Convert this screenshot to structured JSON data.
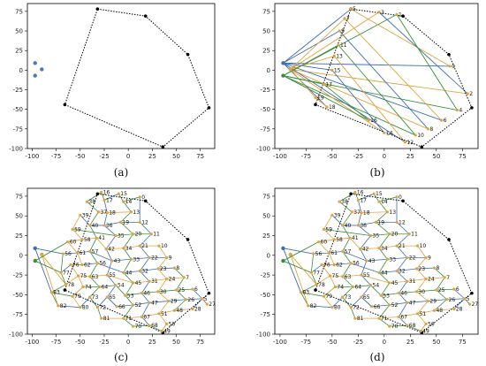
{
  "figure": {
    "panels": [
      {
        "id": "a",
        "label": "(a)"
      },
      {
        "id": "b",
        "label": "(b)"
      },
      {
        "id": "c",
        "label": "(c)"
      },
      {
        "id": "d",
        "label": "(d)"
      }
    ],
    "colors": {
      "blue": "#3f6fb2",
      "orange": "#e0a43c",
      "green": "#3a8f3a",
      "dots": "#4a7ab8",
      "hull": "#000000"
    }
  },
  "chart_data": [
    {
      "type": "scatter",
      "panel": "(a)",
      "title": "",
      "xlabel": "",
      "ylabel": "",
      "xlim": [
        -105,
        90
      ],
      "ylim": [
        -100,
        85
      ],
      "x_ticks": [
        -100,
        -75,
        -50,
        -25,
        0,
        25,
        50,
        75
      ],
      "y_ticks": [
        -100,
        -75,
        -50,
        -25,
        0,
        25,
        50,
        75
      ],
      "hull": [
        [
          -32,
          78
        ],
        [
          18,
          69
        ],
        [
          62,
          20
        ],
        [
          84,
          -48
        ],
        [
          36,
          -98
        ],
        [
          -66,
          -44
        ]
      ],
      "points": [
        [
          -97,
          9
        ],
        [
          -90,
          1
        ],
        [
          -97,
          -7
        ]
      ]
    },
    {
      "type": "line",
      "panel": "(b)",
      "title": "",
      "xlabel": "",
      "ylabel": "",
      "xlim": [
        -105,
        90
      ],
      "ylim": [
        -100,
        85
      ],
      "x_ticks": [
        -100,
        -75,
        -50,
        -25,
        0,
        25,
        50,
        75
      ],
      "y_ticks": [
        -100,
        -75,
        -50,
        -25,
        0,
        25,
        50,
        75
      ],
      "hull": [
        [
          -32,
          78
        ],
        [
          18,
          69
        ],
        [
          62,
          20
        ],
        [
          84,
          -48
        ],
        [
          36,
          -98
        ],
        [
          -66,
          -44
        ]
      ],
      "labeled_points": [
        {
          "label": "5",
          "x": -32,
          "y": 78
        },
        {
          "label": "3",
          "x": -5,
          "y": 74
        },
        {
          "label": "1",
          "x": 12,
          "y": 71
        },
        {
          "label": "0",
          "x": 63,
          "y": 5
        },
        {
          "label": "2",
          "x": 80,
          "y": -30
        },
        {
          "label": "4",
          "x": 70,
          "y": -51
        },
        {
          "label": "6",
          "x": 55,
          "y": -64
        },
        {
          "label": "8",
          "x": 42,
          "y": -75
        },
        {
          "label": "10",
          "x": 30,
          "y": -83
        },
        {
          "label": "12",
          "x": 20,
          "y": -92
        },
        {
          "label": "14",
          "x": 0,
          "y": -80
        },
        {
          "label": "16",
          "x": -15,
          "y": -64
        },
        {
          "label": "18",
          "x": -55,
          "y": -47
        },
        {
          "label": "19",
          "x": -66,
          "y": -35
        },
        {
          "label": "17",
          "x": -58,
          "y": -18
        },
        {
          "label": "15",
          "x": -50,
          "y": 0
        },
        {
          "label": "13",
          "x": -48,
          "y": 18
        },
        {
          "label": "11",
          "x": -44,
          "y": 32
        },
        {
          "label": "9",
          "x": -43,
          "y": 50
        },
        {
          "label": "7",
          "x": -38,
          "y": 66
        }
      ]
    },
    {
      "type": "line",
      "panel": "(c)",
      "title": "",
      "xlabel": "",
      "ylabel": "",
      "xlim": [
        -105,
        90
      ],
      "ylim": [
        -100,
        85
      ],
      "x_ticks": [
        -100,
        -75,
        -50,
        -25,
        0,
        25,
        50,
        75
      ],
      "y_ticks": [
        -100,
        -75,
        -50,
        -25,
        0,
        25,
        50,
        75
      ],
      "hull": [
        [
          -32,
          78
        ],
        [
          18,
          69
        ],
        [
          62,
          20
        ],
        [
          84,
          -48
        ],
        [
          36,
          -98
        ],
        [
          -66,
          -44
        ]
      ],
      "labeled_points": [
        {
          "label": "16",
          "x": -28,
          "y": 80
        },
        {
          "label": "15",
          "x": -10,
          "y": 78
        },
        {
          "label": "0",
          "x": 12,
          "y": 74
        },
        {
          "label": "38",
          "x": -43,
          "y": 68
        },
        {
          "label": "17",
          "x": -25,
          "y": 70
        },
        {
          "label": "14",
          "x": -5,
          "y": 68
        },
        {
          "label": "39",
          "x": -50,
          "y": 51
        },
        {
          "label": "37",
          "x": -31,
          "y": 55
        },
        {
          "label": "18",
          "x": -22,
          "y": 54
        },
        {
          "label": "13",
          "x": 3,
          "y": 55
        },
        {
          "label": "59",
          "x": -58,
          "y": 33
        },
        {
          "label": "40",
          "x": -40,
          "y": 38
        },
        {
          "label": "36",
          "x": -25,
          "y": 38
        },
        {
          "label": "19",
          "x": -8,
          "y": 42
        },
        {
          "label": "12",
          "x": 12,
          "y": 42
        },
        {
          "label": "60",
          "x": -63,
          "y": 17
        },
        {
          "label": "58",
          "x": -48,
          "y": 20
        },
        {
          "label": "41",
          "x": -33,
          "y": 22
        },
        {
          "label": "35",
          "x": -13,
          "y": 25
        },
        {
          "label": "20",
          "x": 5,
          "y": 27
        },
        {
          "label": "11",
          "x": 24,
          "y": 27
        },
        {
          "label": "56",
          "x": -68,
          "y": 2
        },
        {
          "label": "61",
          "x": -53,
          "y": 3
        },
        {
          "label": "57",
          "x": -40,
          "y": 5
        },
        {
          "label": "42",
          "x": -23,
          "y": 8
        },
        {
          "label": "34",
          "x": -5,
          "y": 9
        },
        {
          "label": "21",
          "x": 12,
          "y": 12
        },
        {
          "label": "10",
          "x": 32,
          "y": 12
        },
        {
          "label": "76",
          "x": -60,
          "y": -12
        },
        {
          "label": "62",
          "x": -48,
          "y": -12
        },
        {
          "label": "56",
          "x": -32,
          "y": -10
        },
        {
          "label": "43",
          "x": -17,
          "y": -7
        },
        {
          "label": "33",
          "x": 3,
          "y": -5
        },
        {
          "label": "22",
          "x": 22,
          "y": -3
        },
        {
          "label": "9",
          "x": 40,
          "y": -3
        },
        {
          "label": "77",
          "x": -70,
          "y": -22
        },
        {
          "label": "75",
          "x": -52,
          "y": -26
        },
        {
          "label": "63",
          "x": -40,
          "y": -27
        },
        {
          "label": "55",
          "x": -22,
          "y": -25
        },
        {
          "label": "44",
          "x": -5,
          "y": -22
        },
        {
          "label": "32",
          "x": 12,
          "y": -20
        },
        {
          "label": "23",
          "x": 31,
          "y": -17
        },
        {
          "label": "8",
          "x": 48,
          "y": -16
        },
        {
          "label": "78",
          "x": -65,
          "y": -37
        },
        {
          "label": "74",
          "x": -47,
          "y": -40
        },
        {
          "label": "64",
          "x": -30,
          "y": -40
        },
        {
          "label": "54",
          "x": -13,
          "y": -38
        },
        {
          "label": "45",
          "x": 5,
          "y": -35
        },
        {
          "label": "31",
          "x": 22,
          "y": -33
        },
        {
          "label": "24",
          "x": 40,
          "y": -30
        },
        {
          "label": "7",
          "x": 58,
          "y": -28
        },
        {
          "label": "83",
          "x": -80,
          "y": -47
        },
        {
          "label": "79",
          "x": -58,
          "y": -52
        },
        {
          "label": "73",
          "x": -40,
          "y": -53
        },
        {
          "label": "65",
          "x": -22,
          "y": -53
        },
        {
          "label": "53",
          "x": -3,
          "y": -51
        },
        {
          "label": "46",
          "x": 14,
          "y": -48
        },
        {
          "label": "30",
          "x": 31,
          "y": -46
        },
        {
          "label": "25",
          "x": 50,
          "y": -44
        },
        {
          "label": "6",
          "x": 67,
          "y": -43
        },
        {
          "label": "82",
          "x": -73,
          "y": -64
        },
        {
          "label": "80",
          "x": -50,
          "y": -66
        },
        {
          "label": "72",
          "x": -32,
          "y": -66
        },
        {
          "label": "66",
          "x": -12,
          "y": -65
        },
        {
          "label": "52",
          "x": 5,
          "y": -63
        },
        {
          "label": "47",
          "x": 22,
          "y": -60
        },
        {
          "label": "29",
          "x": 42,
          "y": -58
        },
        {
          "label": "26",
          "x": 60,
          "y": -56
        },
        {
          "label": "5",
          "x": 77,
          "y": -55
        },
        {
          "label": "81",
          "x": -28,
          "y": -80
        },
        {
          "label": "71",
          "x": -5,
          "y": -80
        },
        {
          "label": "67",
          "x": 14,
          "y": -78
        },
        {
          "label": "51",
          "x": 32,
          "y": -74
        },
        {
          "label": "48",
          "x": 48,
          "y": -70
        },
        {
          "label": "28",
          "x": 67,
          "y": -68
        },
        {
          "label": "27",
          "x": 82,
          "y": -62
        },
        {
          "label": "70",
          "x": 5,
          "y": -90
        },
        {
          "label": "68",
          "x": 22,
          "y": -89
        },
        {
          "label": "50",
          "x": 40,
          "y": -87
        },
        {
          "label": "49",
          "x": 35,
          "y": -96
        }
      ]
    },
    {
      "type": "line",
      "panel": "(d)",
      "title": "",
      "xlabel": "",
      "ylabel": "",
      "xlim": [
        -105,
        90
      ],
      "ylim": [
        -100,
        85
      ],
      "x_ticks": [
        -100,
        -75,
        -50,
        -25,
        0,
        25,
        50,
        75
      ],
      "y_ticks": [
        -100,
        -75,
        -50,
        -25,
        0,
        25,
        50,
        75
      ],
      "same_as": "(c)"
    }
  ]
}
